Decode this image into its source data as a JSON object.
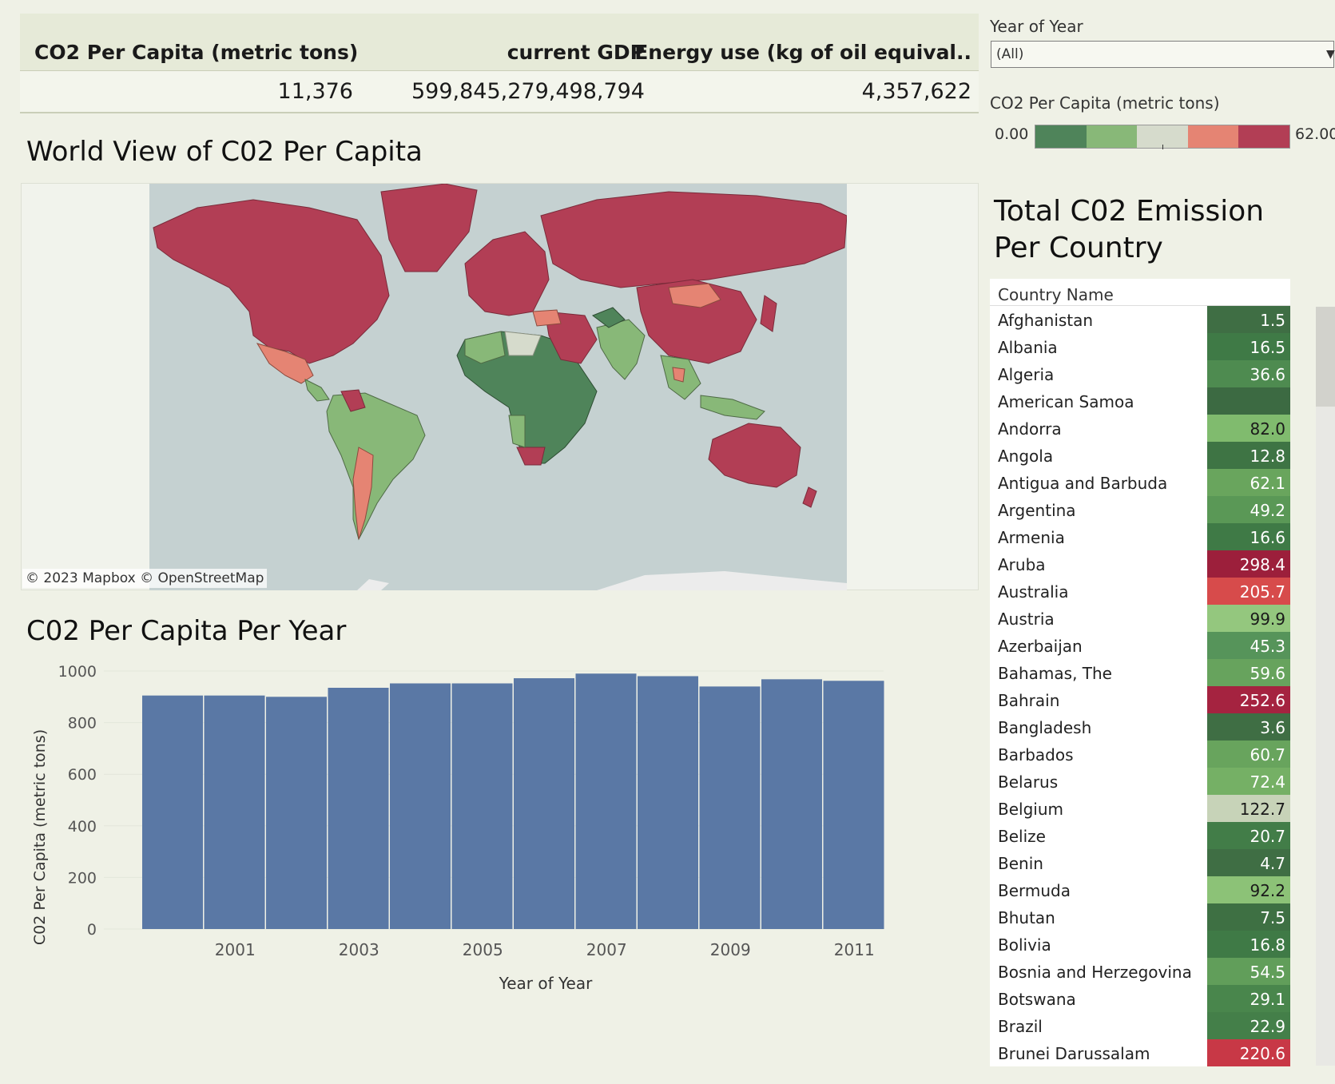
{
  "kpi": {
    "headers": [
      "CO2 Per Capita (metric tons)",
      "current GDP",
      "Energy use (kg of oil equival.."
    ],
    "values": [
      "11,376",
      "599,845,279,498,794",
      "4,357,622"
    ]
  },
  "map": {
    "title": "World View of C02 Per Capita",
    "attribution": "© 2023 Mapbox  © OpenStreetMap"
  },
  "bar_chart": {
    "title": "C02 Per Capita Per Year"
  },
  "chart_data": {
    "type": "bar",
    "x": [
      2000,
      2001,
      2002,
      2003,
      2004,
      2005,
      2006,
      2007,
      2008,
      2009,
      2010,
      2011
    ],
    "values": [
      905,
      905,
      900,
      935,
      952,
      952,
      972,
      990,
      980,
      940,
      968,
      962
    ],
    "xticks": [
      "2001",
      "2003",
      "2005",
      "2007",
      "2009",
      "2011"
    ],
    "yticks": [
      "1000",
      "800",
      "600",
      "400",
      "200",
      "0"
    ],
    "xlabel": "Year of Year",
    "ylabel": "C02 Per Capita (metric tons)",
    "ylim": [
      0,
      1000
    ],
    "bar_color": "#5a78a5"
  },
  "filter": {
    "label": "Year of Year",
    "value": "(All)"
  },
  "legend": {
    "title": "CO2 Per Capita (metric tons)",
    "min": "0.00",
    "max": "62.00",
    "colors": [
      "#4f845a",
      "#88b878",
      "#d6dbcc",
      "#e58473",
      "#b23e55"
    ]
  },
  "table": {
    "title": "Total C02 Emission Per Country",
    "column_header": "Country Name",
    "rows": [
      {
        "name": "Afghanistan",
        "value": "1.5",
        "color": "#3f6e44",
        "text": "#fff"
      },
      {
        "name": "Albania",
        "value": "16.5",
        "color": "#3f7a46",
        "text": "#fff"
      },
      {
        "name": "Algeria",
        "value": "36.6",
        "color": "#4e8b50",
        "text": "#fff"
      },
      {
        "name": "American Samoa",
        "value": "",
        "color": "#3c6a42",
        "text": "#fff"
      },
      {
        "name": "Andorra",
        "value": "82.0",
        "color": "#80bb6e",
        "text": "#1a1a1a"
      },
      {
        "name": "Angola",
        "value": "12.8",
        "color": "#3e7444",
        "text": "#fff"
      },
      {
        "name": "Antigua and Barbuda",
        "value": "62.1",
        "color": "#69a55d",
        "text": "#fff"
      },
      {
        "name": "Argentina",
        "value": "49.2",
        "color": "#5a9856",
        "text": "#fff"
      },
      {
        "name": "Armenia",
        "value": "16.6",
        "color": "#3f7a46",
        "text": "#fff"
      },
      {
        "name": "Aruba",
        "value": "298.4",
        "color": "#9c1f3b",
        "text": "#fff"
      },
      {
        "name": "Australia",
        "value": "205.7",
        "color": "#d74b4b",
        "text": "#fff"
      },
      {
        "name": "Austria",
        "value": "99.9",
        "color": "#94c77e",
        "text": "#1a1a1a"
      },
      {
        "name": "Azerbaijan",
        "value": "45.3",
        "color": "#56945a",
        "text": "#fff"
      },
      {
        "name": "Bahamas, The",
        "value": "59.6",
        "color": "#67a35d",
        "text": "#fff"
      },
      {
        "name": "Bahrain",
        "value": "252.6",
        "color": "#a52340",
        "text": "#fff"
      },
      {
        "name": "Bangladesh",
        "value": "3.6",
        "color": "#3f6e44",
        "text": "#fff"
      },
      {
        "name": "Barbados",
        "value": "60.7",
        "color": "#68a45d",
        "text": "#fff"
      },
      {
        "name": "Belarus",
        "value": "72.4",
        "color": "#75b065",
        "text": "#fff"
      },
      {
        "name": "Belgium",
        "value": "122.7",
        "color": "#c7d3b8",
        "text": "#1a1a1a"
      },
      {
        "name": "Belize",
        "value": "20.7",
        "color": "#427d48",
        "text": "#fff"
      },
      {
        "name": "Benin",
        "value": "4.7",
        "color": "#3f6e44",
        "text": "#fff"
      },
      {
        "name": "Bermuda",
        "value": "92.2",
        "color": "#8cc277",
        "text": "#1a1a1a"
      },
      {
        "name": "Bhutan",
        "value": "7.5",
        "color": "#3e7043",
        "text": "#fff"
      },
      {
        "name": "Bolivia",
        "value": "16.8",
        "color": "#3f7a46",
        "text": "#fff"
      },
      {
        "name": "Bosnia and Herzegovina",
        "value": "54.5",
        "color": "#619e5a",
        "text": "#fff"
      },
      {
        "name": "Botswana",
        "value": "29.1",
        "color": "#49864c",
        "text": "#fff"
      },
      {
        "name": "Brazil",
        "value": "22.9",
        "color": "#447f49",
        "text": "#fff"
      },
      {
        "name": "Brunei Darussalam",
        "value": "220.6",
        "color": "#c83846",
        "text": "#fff"
      }
    ]
  }
}
